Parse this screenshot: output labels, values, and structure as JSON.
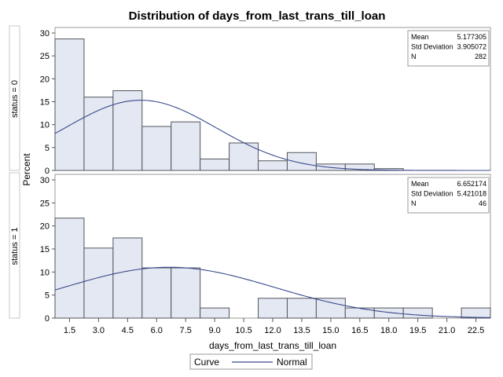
{
  "chart_data": {
    "type": "bar",
    "subtype": "histogram-panel",
    "title": "Distribution of days_from_last_trans_till_loan",
    "xlabel": "days_from_last_trans_till_loan",
    "ylabel": "Percent",
    "bin_width": 1.5,
    "xlim": [
      0.75,
      23.25
    ],
    "ylim": [
      0,
      30
    ],
    "x_ticks": [
      "1.5",
      "3.0",
      "4.5",
      "6.0",
      "7.5",
      "9.0",
      "10.5",
      "12.0",
      "13.5",
      "15.0",
      "16.5",
      "18.0",
      "19.5",
      "21.0",
      "22.5"
    ],
    "y_ticks": [
      "0",
      "5",
      "10",
      "15",
      "20",
      "25",
      "30"
    ],
    "panels": [
      {
        "label": "status = 0",
        "bin_centers": [
          1.5,
          3.0,
          4.5,
          6.0,
          7.5,
          9.0,
          10.5,
          12.0,
          13.5,
          15.0,
          16.5,
          18.0,
          19.5,
          21.0,
          22.5
        ],
        "values": [
          28.7,
          16.0,
          17.4,
          9.6,
          10.6,
          2.5,
          6.0,
          2.1,
          3.9,
          1.4,
          1.4,
          0.4,
          0,
          0,
          0
        ],
        "curve": {
          "name": "Normal",
          "mean": 5.177305,
          "std": 3.905072,
          "n": 282
        },
        "stats": [
          {
            "label": "Mean",
            "value": "5.177305"
          },
          {
            "label": "Std Deviation",
            "value": "3.905072"
          },
          {
            "label": "N",
            "value": "282"
          }
        ]
      },
      {
        "label": "status = 1",
        "bin_centers": [
          1.5,
          3.0,
          4.5,
          6.0,
          7.5,
          9.0,
          10.5,
          12.0,
          13.5,
          15.0,
          16.5,
          18.0,
          19.5,
          21.0,
          22.5
        ],
        "values": [
          21.7,
          15.2,
          17.4,
          10.9,
          10.9,
          2.2,
          0,
          4.3,
          4.3,
          4.3,
          2.2,
          2.2,
          2.2,
          0,
          2.2
        ],
        "curve": {
          "name": "Normal",
          "mean": 6.652174,
          "std": 5.421018,
          "n": 46
        },
        "stats": [
          {
            "label": "Mean",
            "value": "6.652174"
          },
          {
            "label": "Std Deviation",
            "value": "5.421018"
          },
          {
            "label": "N",
            "value": "46"
          }
        ]
      }
    ],
    "legend": {
      "title": "Curve",
      "entries": [
        "Normal"
      ],
      "position": "bottom"
    },
    "colors": {
      "bar_fill": "#e4e8f2",
      "bar_edge": "#50545c",
      "curve": "#3a4a8c",
      "frame": "#9a9a9a",
      "text": "#000000"
    }
  }
}
